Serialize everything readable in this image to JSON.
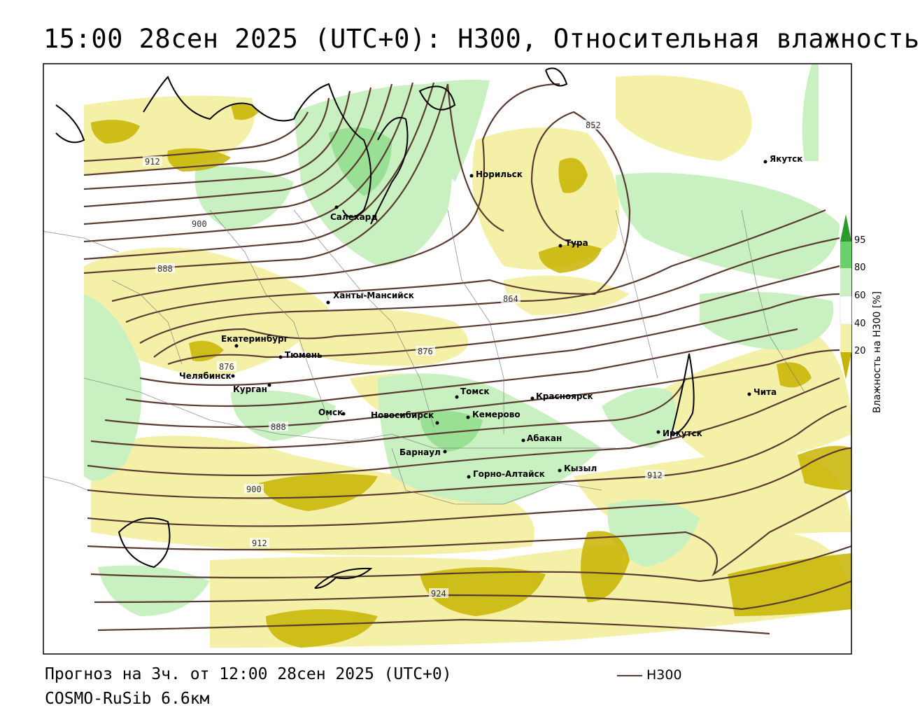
{
  "title": "15:00 28сен 2025 (UTC+0): H300, Относительная влажность",
  "footer": {
    "forecast": "Прогноз на 3ч. от 12:00 28сен 2025 (UTC+0)",
    "model": "COSMO-RuSib 6.6км",
    "legend_label": "H300"
  },
  "colorbar": {
    "title": "Влажность на H300 [%]",
    "ticks": [
      "95",
      "80",
      "60",
      "40",
      "20"
    ],
    "colors": {
      "lt20": "#c8b400",
      "20_40": "#f5f0a8",
      "40_60": "#ffffff",
      "60_80": "#c8f0c0",
      "80_95": "#6ad06a",
      "gt95": "#2a9a2a"
    }
  },
  "contour_color": "#5a3b32",
  "contour_labels": [
    "912",
    "900",
    "888",
    "852",
    "864",
    "876",
    "876",
    "888",
    "900",
    "912",
    "924",
    "912"
  ],
  "cities": [
    "Якутск",
    "Норильск",
    "Салехард",
    "Тура",
    "Ханты-Мансийск",
    "Екатеринбург",
    "Тюмень",
    "Челябинск",
    "Курган",
    "Омск",
    "Новосибирск",
    "Томск",
    "Кемерово",
    "Красноярск",
    "Барнаул",
    "Абакан",
    "Горно-Алтайск",
    "Кызыл",
    "Иркутск",
    "Чита"
  ]
}
